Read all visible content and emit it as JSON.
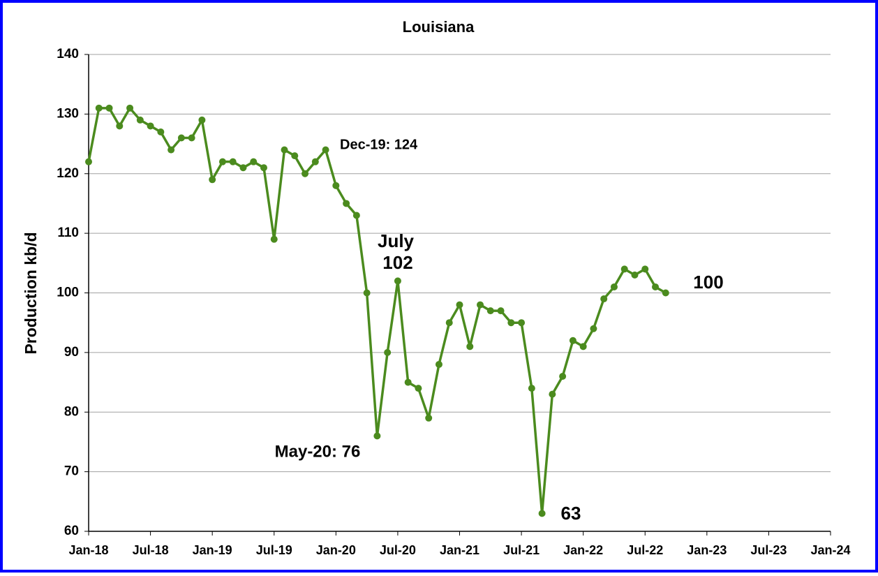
{
  "chart_data": {
    "type": "line",
    "title": "Louisiana",
    "y_label": "Production kb/d",
    "color": "#4b8b1e",
    "grid": true,
    "x": [
      "2018-01",
      "2018-02",
      "2018-03",
      "2018-04",
      "2018-05",
      "2018-06",
      "2018-07",
      "2018-08",
      "2018-09",
      "2018-10",
      "2018-11",
      "2018-12",
      "2019-01",
      "2019-02",
      "2019-03",
      "2019-04",
      "2019-05",
      "2019-06",
      "2019-07",
      "2019-08",
      "2019-09",
      "2019-10",
      "2019-11",
      "2019-12",
      "2020-01",
      "2020-02",
      "2020-03",
      "2020-04",
      "2020-05",
      "2020-06",
      "2020-07",
      "2020-08",
      "2020-09",
      "2020-10",
      "2020-11",
      "2020-12",
      "2021-01",
      "2021-02",
      "2021-03",
      "2021-04",
      "2021-05",
      "2021-06",
      "2021-07",
      "2021-08",
      "2021-09",
      "2021-10",
      "2021-11",
      "2021-12",
      "2022-01",
      "2022-02",
      "2022-03",
      "2022-04",
      "2022-05",
      "2022-06",
      "2022-07",
      "2022-08",
      "2022-09"
    ],
    "values": [
      122,
      131,
      131,
      128,
      131,
      129,
      128,
      127,
      124,
      126,
      126,
      129,
      119,
      122,
      122,
      121,
      122,
      121,
      109,
      124,
      123,
      120,
      122,
      124,
      118,
      115,
      113,
      100,
      76,
      90,
      102,
      85,
      84,
      79,
      88,
      95,
      98,
      91,
      98,
      97,
      97,
      95,
      95,
      84,
      63,
      83,
      86,
      92,
      91,
      94,
      99,
      101,
      104,
      103,
      104,
      101,
      100
    ],
    "xlim": [
      "2018-01",
      "2024-01"
    ],
    "xticks": [
      {
        "value": "2018-01",
        "label": "Jan-18"
      },
      {
        "value": "2018-07",
        "label": "Jul-18"
      },
      {
        "value": "2019-01",
        "label": "Jan-19"
      },
      {
        "value": "2019-07",
        "label": "Jul-19"
      },
      {
        "value": "2020-01",
        "label": "Jan-20"
      },
      {
        "value": "2020-07",
        "label": "Jul-20"
      },
      {
        "value": "2021-01",
        "label": "Jan-21"
      },
      {
        "value": "2021-07",
        "label": "Jul-21"
      },
      {
        "value": "2022-01",
        "label": "Jan-22"
      },
      {
        "value": "2022-07",
        "label": "Jul-22"
      },
      {
        "value": "2023-01",
        "label": "Jan-23"
      },
      {
        "value": "2023-07",
        "label": "Jul-23"
      },
      {
        "value": "2024-01",
        "label": "Jan-24"
      }
    ],
    "ylim": [
      60,
      140
    ],
    "yticks": [
      60,
      70,
      80,
      90,
      100,
      110,
      120,
      130,
      140
    ],
    "annotations": [
      "Dec-19: 124",
      "July",
      "102",
      "May-20: 76",
      "63",
      "100"
    ]
  }
}
